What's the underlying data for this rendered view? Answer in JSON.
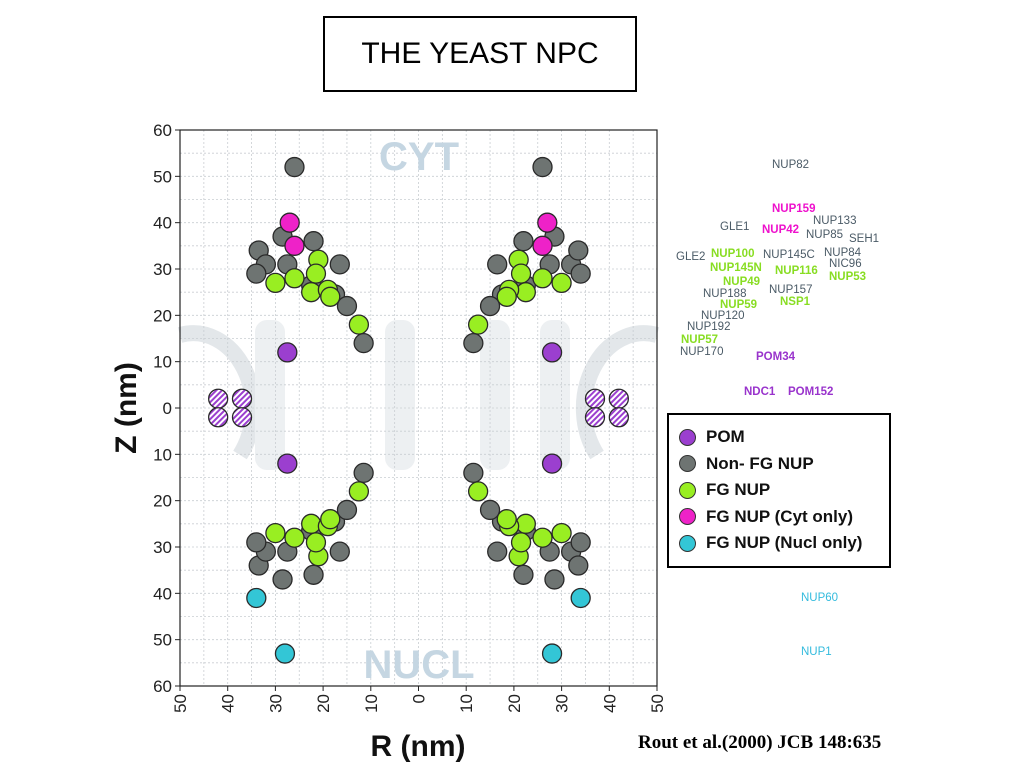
{
  "title": "THE YEAST NPC",
  "citation": "Rout et al.(2000) JCB 148:635",
  "colors": {
    "pom": "#9b3fcf",
    "non_fg": "#6e7472",
    "fg": "#99ee22",
    "fg_cyt": "#ee22c8",
    "fg_nucl": "#33c6d6",
    "background_text": "#c5d6e2",
    "label_grey": "#4a5a66",
    "label_green": "#88dd22",
    "label_magenta": "#ee11cc",
    "label_purple": "#9933cc",
    "label_cyan": "#33bbdd"
  },
  "legend": [
    {
      "label": "POM",
      "color": "#9b3fcf"
    },
    {
      "label": "Non- FG NUP",
      "color": "#6e7472"
    },
    {
      "label": "FG NUP",
      "color": "#99ee22"
    },
    {
      "label": "FG NUP (Cyt only)",
      "color": "#ee22c8"
    },
    {
      "label": "FG NUP (Nucl only)",
      "color": "#33c6d6"
    }
  ],
  "nup_labels": [
    {
      "text": "NUP82",
      "color": "grey",
      "bold": false
    },
    {
      "text": "NUP159",
      "color": "magenta",
      "bold": true
    },
    {
      "text": "NUP133",
      "color": "grey",
      "bold": false
    },
    {
      "text": "GLE1",
      "color": "grey",
      "bold": false
    },
    {
      "text": "NUP42",
      "color": "magenta",
      "bold": true
    },
    {
      "text": "NUP85",
      "color": "grey",
      "bold": false
    },
    {
      "text": "SEH1",
      "color": "grey",
      "bold": false
    },
    {
      "text": "GLE2",
      "color": "grey",
      "bold": false
    },
    {
      "text": "NUP100",
      "color": "green",
      "bold": true
    },
    {
      "text": "NUP145C",
      "color": "grey",
      "bold": false
    },
    {
      "text": "NUP84",
      "color": "grey",
      "bold": false
    },
    {
      "text": "NUP145N",
      "color": "green",
      "bold": true
    },
    {
      "text": "NIC96",
      "color": "grey",
      "bold": false
    },
    {
      "text": "NUP116",
      "color": "green",
      "bold": true
    },
    {
      "text": "NUP53",
      "color": "green",
      "bold": true
    },
    {
      "text": "NUP49",
      "color": "green",
      "bold": true
    },
    {
      "text": "NUP188",
      "color": "grey",
      "bold": false
    },
    {
      "text": "NUP157",
      "color": "grey",
      "bold": false
    },
    {
      "text": "NUP59",
      "color": "green",
      "bold": true
    },
    {
      "text": "NSP1",
      "color": "green",
      "bold": true
    },
    {
      "text": "NUP120",
      "color": "grey",
      "bold": false
    },
    {
      "text": "NUP192",
      "color": "grey",
      "bold": false
    },
    {
      "text": "NUP57",
      "color": "green",
      "bold": true
    },
    {
      "text": "NUP170",
      "color": "grey",
      "bold": false
    },
    {
      "text": "POM34",
      "color": "purple",
      "bold": true
    },
    {
      "text": "NDC1",
      "color": "purple",
      "bold": true
    },
    {
      "text": "POM152",
      "color": "purple",
      "bold": true
    },
    {
      "text": "NUP60",
      "color": "cyan",
      "bold": false
    },
    {
      "text": "NUP1",
      "color": "cyan",
      "bold": false
    }
  ],
  "chart_data": {
    "type": "scatter",
    "xlabel": "R (nm)",
    "ylabel": "Z (nm)",
    "x_ticks": [
      "50",
      "40",
      "30",
      "20",
      "10",
      "0",
      "10",
      "20",
      "30",
      "40",
      "50"
    ],
    "y_ticks": [
      "60",
      "50",
      "40",
      "30",
      "20",
      "10",
      "0",
      "10",
      "20",
      "30",
      "40",
      "50",
      "60"
    ],
    "xlim": [
      -50,
      50
    ],
    "ylim": [
      -60,
      60
    ],
    "grid": true,
    "region_labels": {
      "top": "CYT",
      "bottom": "NUCL"
    },
    "legend_placement": "right",
    "series": [
      {
        "name": "POM",
        "color": "#9b3fcf",
        "points": [
          [
            -27.5,
            12
          ],
          [
            -27.5,
            -12
          ],
          [
            28,
            12
          ],
          [
            28,
            -12
          ]
        ]
      },
      {
        "name": "POM",
        "color": "#9b3fcf",
        "hatched": true,
        "points": [
          [
            -42,
            2
          ],
          [
            -37,
            2
          ],
          [
            -42,
            -2
          ],
          [
            -37,
            -2
          ],
          [
            37,
            2
          ],
          [
            42,
            2
          ],
          [
            37,
            -2
          ],
          [
            42,
            -2
          ]
        ]
      },
      {
        "name": "Non- FG NUP",
        "color": "#6e7472",
        "points": [
          [
            -26,
            52
          ],
          [
            26,
            52
          ],
          [
            -28.5,
            37
          ],
          [
            -33.5,
            34
          ],
          [
            -32,
            31
          ],
          [
            -34,
            29
          ],
          [
            -27.5,
            31
          ],
          [
            -22,
            36
          ],
          [
            -22.5,
            26.5
          ],
          [
            -16.5,
            31
          ],
          [
            -17.5,
            24.5
          ],
          [
            -15,
            22
          ],
          [
            -11.5,
            14
          ],
          [
            28.5,
            37
          ],
          [
            22,
            36
          ],
          [
            32,
            31
          ],
          [
            34,
            29
          ],
          [
            27.5,
            31
          ],
          [
            22.5,
            26.5
          ],
          [
            16.5,
            31
          ],
          [
            17.5,
            24.5
          ],
          [
            15,
            22
          ],
          [
            11.5,
            14
          ],
          [
            33.5,
            34
          ],
          [
            -28.5,
            -37
          ],
          [
            -33.5,
            -34
          ],
          [
            -32,
            -31
          ],
          [
            -34,
            -29
          ],
          [
            -27.5,
            -31
          ],
          [
            -22,
            -36
          ],
          [
            -22.5,
            -26.5
          ],
          [
            -16.5,
            -31
          ],
          [
            -17.5,
            -24.5
          ],
          [
            -15,
            -22
          ],
          [
            -11.5,
            -14
          ],
          [
            28.5,
            -37
          ],
          [
            22,
            -36
          ],
          [
            32,
            -31
          ],
          [
            34,
            -29
          ],
          [
            27.5,
            -31
          ],
          [
            22.5,
            -26.5
          ],
          [
            16.5,
            -31
          ],
          [
            17.5,
            -24.5
          ],
          [
            15,
            -22
          ],
          [
            11.5,
            -14
          ],
          [
            33.5,
            -34
          ]
        ]
      },
      {
        "name": "FG NUP",
        "color": "#99ee22",
        "points": [
          [
            -30,
            27
          ],
          [
            -26,
            28
          ],
          [
            -21,
            32
          ],
          [
            -21.5,
            29
          ],
          [
            -22.5,
            25
          ],
          [
            -19,
            25.5
          ],
          [
            -18.5,
            24
          ],
          [
            -12.5,
            18
          ],
          [
            30,
            27
          ],
          [
            26,
            28
          ],
          [
            21,
            32
          ],
          [
            21.5,
            29
          ],
          [
            22.5,
            25
          ],
          [
            19,
            25.5
          ],
          [
            18.5,
            24
          ],
          [
            12.5,
            18
          ],
          [
            -30,
            -27
          ],
          [
            -26,
            -28
          ],
          [
            -21,
            -32
          ],
          [
            -21.5,
            -29
          ],
          [
            -22.5,
            -25
          ],
          [
            -19,
            -25.5
          ],
          [
            -18.5,
            -24
          ],
          [
            -12.5,
            -18
          ],
          [
            30,
            -27
          ],
          [
            26,
            -28
          ],
          [
            21,
            -32
          ],
          [
            21.5,
            -29
          ],
          [
            22.5,
            -25
          ],
          [
            19,
            -25.5
          ],
          [
            18.5,
            -24
          ],
          [
            12.5,
            -18
          ]
        ]
      },
      {
        "name": "FG NUP (Cyt only)",
        "color": "#ee22c8",
        "points": [
          [
            -27,
            40
          ],
          [
            -26,
            35
          ],
          [
            27,
            40
          ],
          [
            26,
            35
          ]
        ]
      },
      {
        "name": "FG NUP (Nucl only)",
        "color": "#33c6d6",
        "points": [
          [
            -34,
            -41
          ],
          [
            -28,
            -53
          ],
          [
            34,
            -41
          ],
          [
            28,
            -53
          ]
        ]
      }
    ]
  }
}
